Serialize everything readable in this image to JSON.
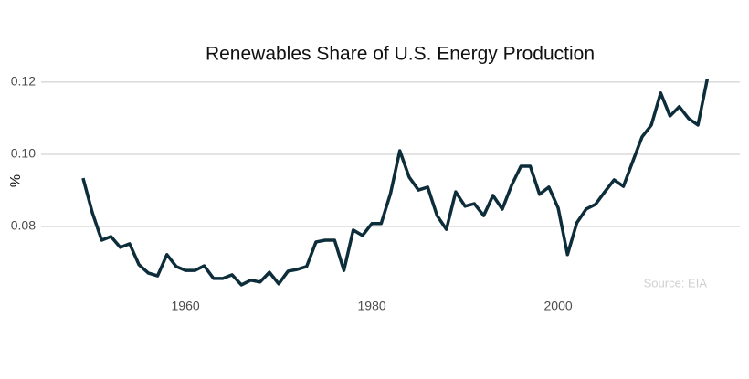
{
  "chart_data": {
    "type": "line",
    "title": "Renewables Share of U.S. Energy Production",
    "y_label": "%",
    "annotation": "Source: EIA",
    "x": [
      1949,
      1950,
      1951,
      1952,
      1953,
      1954,
      1955,
      1956,
      1957,
      1958,
      1959,
      1960,
      1961,
      1962,
      1963,
      1964,
      1965,
      1966,
      1967,
      1968,
      1969,
      1970,
      1971,
      1972,
      1973,
      1974,
      1975,
      1976,
      1977,
      1978,
      1979,
      1980,
      1981,
      1982,
      1983,
      1984,
      1985,
      1986,
      1987,
      1988,
      1989,
      1990,
      1991,
      1992,
      1993,
      1994,
      1995,
      1996,
      1997,
      1998,
      1999,
      2000,
      2001,
      2002,
      2003,
      2004,
      2005,
      2006,
      2007,
      2008,
      2009,
      2010,
      2011,
      2012,
      2013,
      2014,
      2015,
      2016
    ],
    "series": [
      {
        "name": "Renewables share",
        "color": "#0d2d3a",
        "values": [
          0.0934,
          0.0838,
          0.0762,
          0.0772,
          0.0742,
          0.0752,
          0.0694,
          0.0671,
          0.0663,
          0.0722,
          0.0689,
          0.0678,
          0.0678,
          0.0691,
          0.0656,
          0.0656,
          0.0666,
          0.0638,
          0.0651,
          0.0646,
          0.0673,
          0.0641,
          0.0676,
          0.0681,
          0.0689,
          0.0757,
          0.0762,
          0.0762,
          0.0678,
          0.079,
          0.0775,
          0.0808,
          0.0808,
          0.0891,
          0.101,
          0.0937,
          0.0901,
          0.0909,
          0.083,
          0.0792,
          0.0896,
          0.0856,
          0.0863,
          0.083,
          0.0886,
          0.0848,
          0.0914,
          0.0967,
          0.0967,
          0.0889,
          0.0909,
          0.0851,
          0.0722,
          0.081,
          0.0848,
          0.0861,
          0.0896,
          0.0929,
          0.0911,
          0.098,
          0.1048,
          0.1081,
          0.117,
          0.1106,
          0.1132,
          0.1099,
          0.1081,
          0.1208
        ]
      }
    ],
    "xlim": [
      1944.5,
      2019.5
    ],
    "xticks": [
      1960,
      1980,
      2000
    ],
    "ylim": [
      0.0605,
      0.1215
    ],
    "yticks": [
      0.08,
      {
        "value": 0.1,
        "label": "0.10"
      },
      0.12
    ],
    "grid": true
  }
}
